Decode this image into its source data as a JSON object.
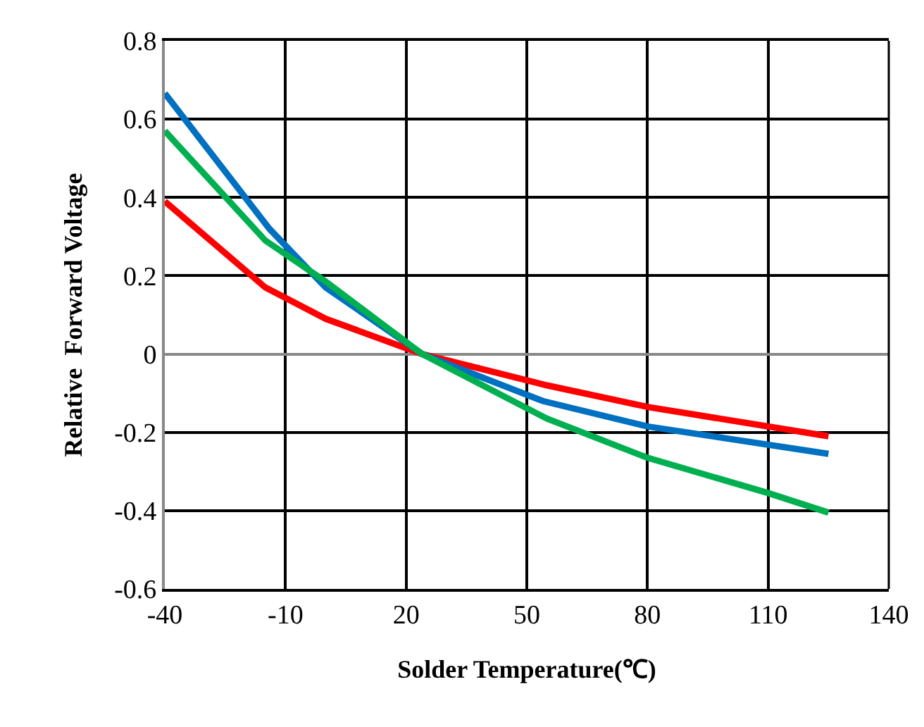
{
  "chart_data": {
    "type": "line",
    "xlabel": "Solder Temperature(℃)",
    "ylabel": "Relative  Forward Voltage",
    "xlim": [
      -40,
      140
    ],
    "xticks": [
      -40,
      -10,
      20,
      50,
      80,
      110,
      140
    ],
    "ylim": [
      -0.6,
      0.8
    ],
    "yticks": [
      -0.6,
      -0.4,
      -0.2,
      0,
      0.2,
      0.4,
      0.6,
      0.8
    ],
    "grid": true,
    "marker": "none",
    "line_style": "solid",
    "series": [
      {
        "color": "#ff0000",
        "x": [
          -40,
          -15,
          0,
          24,
          55,
          80,
          125
        ],
        "values": [
          0.39,
          0.17,
          0.09,
          0,
          -0.08,
          -0.135,
          -0.21
        ]
      },
      {
        "color": "#0070c0",
        "x": [
          -40,
          -14,
          0,
          24,
          54,
          80,
          125
        ],
        "values": [
          0.666,
          0.32,
          0.17,
          0,
          -0.12,
          -0.185,
          -0.255
        ]
      },
      {
        "color": "#00b050",
        "x": [
          -40,
          -15,
          0,
          24,
          55,
          80,
          110,
          125
        ],
        "values": [
          0.57,
          0.29,
          0.185,
          0,
          -0.165,
          -0.265,
          -0.355,
          -0.405
        ]
      }
    ]
  }
}
